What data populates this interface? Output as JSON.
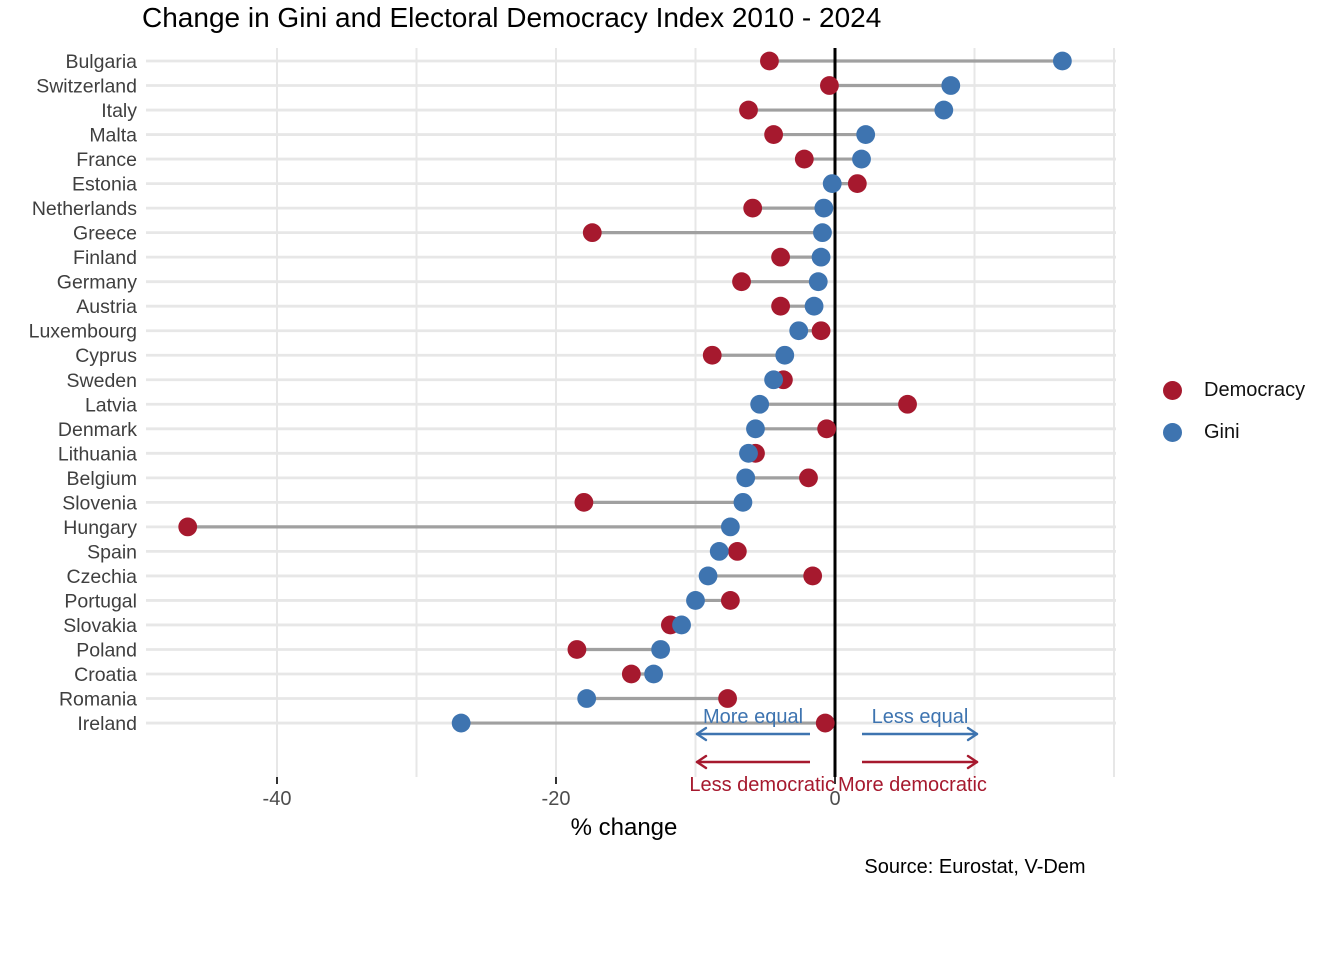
{
  "title": "Change in Gini and Electoral Democracy Index 2010 - 2024",
  "source": "Source: Eurostat, V-Dem",
  "legend": {
    "items": [
      {
        "label": "Democracy",
        "color": "#A6192E"
      },
      {
        "label": "Gini",
        "color": "#3E74B0"
      }
    ]
  },
  "annotations": {
    "more_equal": "More equal",
    "less_equal": "Less equal",
    "less_democratic": "Less democratic",
    "more_democratic": "More democratic",
    "equal_color": "#3E74B0",
    "democratic_color": "#A6192E"
  },
  "chart_data": {
    "type": "scatter",
    "subtype": "dumbbell",
    "title": "Change in Gini and Electoral Democracy Index 2010 - 2024",
    "xlabel": "% change",
    "ylabel": "",
    "xlim": [
      -49.5,
      20
    ],
    "xticks": [
      -40,
      -20,
      0
    ],
    "minor_gridlines_every": 10,
    "grid": true,
    "zero_line": true,
    "legend_position": "right",
    "categories": [
      "Bulgaria",
      "Switzerland",
      "Italy",
      "Malta",
      "France",
      "Estonia",
      "Netherlands",
      "Greece",
      "Finland",
      "Germany",
      "Austria",
      "Luxembourg",
      "Cyprus",
      "Sweden",
      "Latvia",
      "Denmark",
      "Lithuania",
      "Belgium",
      "Slovenia",
      "Hungary",
      "Spain",
      "Czechia",
      "Portugal",
      "Slovakia",
      "Poland",
      "Croatia",
      "Romania",
      "Ireland"
    ],
    "series": [
      {
        "name": "Democracy",
        "color": "#A6192E",
        "values": [
          -4.7,
          -0.4,
          -6.2,
          -4.4,
          -2.2,
          1.6,
          -5.9,
          -17.4,
          -3.9,
          -6.7,
          -3.9,
          -1.0,
          -8.8,
          -3.7,
          5.2,
          -0.6,
          -5.7,
          -1.9,
          -18.0,
          -46.4,
          -7.0,
          -1.6,
          -7.5,
          -11.8,
          -18.5,
          -14.6,
          -7.7,
          -0.7
        ]
      },
      {
        "name": "Gini",
        "color": "#3E74B0",
        "values": [
          16.3,
          8.3,
          7.8,
          2.2,
          1.9,
          -0.2,
          -0.8,
          -0.9,
          -1.0,
          -1.2,
          -1.5,
          -2.6,
          -3.6,
          -4.4,
          -5.4,
          -5.7,
          -6.2,
          -6.4,
          -6.6,
          -7.5,
          -8.3,
          -9.1,
          -10.0,
          -11.0,
          -12.5,
          -13.0,
          -17.8,
          -26.8
        ]
      }
    ],
    "connector_color": "#A0A0A0",
    "gridline_color": "#E7E7E7",
    "tick_label_color": "#4D4D4D",
    "category_label_color": "#3F3F3F"
  }
}
